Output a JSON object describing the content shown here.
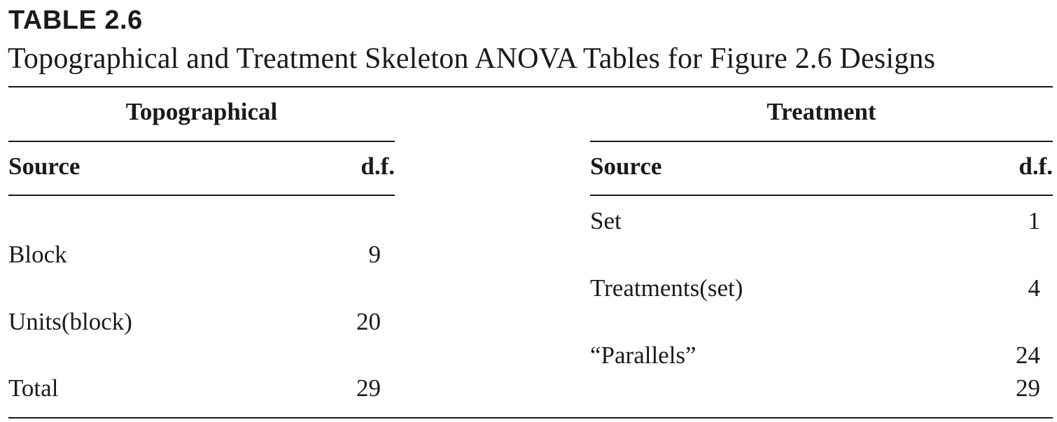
{
  "table": {
    "label": "TABLE 2.6",
    "caption": "Topographical and Treatment Skeleton ANOVA Tables for Figure 2.6 Designs"
  },
  "topographical": {
    "title": "Topographical",
    "headers": {
      "source": "Source",
      "df": "d.f."
    },
    "rows": [
      {
        "source": "Block",
        "df": "9"
      },
      {
        "source": "Units(block)",
        "df": "20"
      },
      {
        "source": "Total",
        "df": "29"
      }
    ]
  },
  "treatment": {
    "title": "Treatment",
    "headers": {
      "source": "Source",
      "df": "d.f."
    },
    "rows": [
      {
        "source": "Set",
        "df": "1"
      },
      {
        "source": "Treatments(set)",
        "df": "4"
      },
      {
        "source": "“Parallels”",
        "df": "24"
      },
      {
        "source": "",
        "df": "29"
      }
    ]
  }
}
